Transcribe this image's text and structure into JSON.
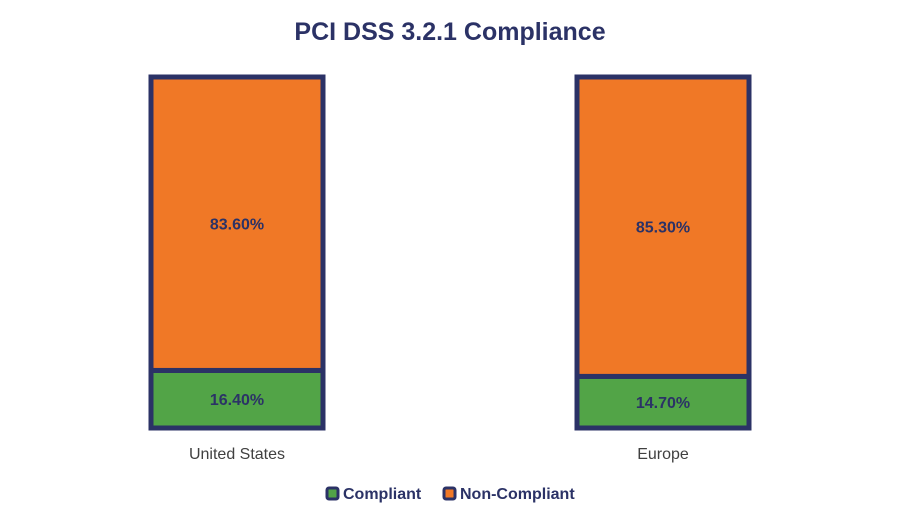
{
  "chart_data": {
    "type": "bar",
    "stacked": true,
    "title": "PCI DSS 3.2.1 Compliance",
    "categories": [
      "United States",
      "Europe"
    ],
    "series": [
      {
        "name": "Compliant",
        "values": [
          16.4,
          14.7
        ],
        "labels": [
          "16.40%",
          "14.70%"
        ],
        "color": "#52a447"
      },
      {
        "name": "Non-Compliant",
        "values": [
          83.6,
          85.3
        ],
        "labels": [
          "83.60%",
          "85.30%"
        ],
        "color": "#f07826"
      }
    ],
    "ylim": [
      0,
      100
    ],
    "unit": "%",
    "border_color": "#2b3266",
    "legend": "bottom",
    "grid": false
  }
}
